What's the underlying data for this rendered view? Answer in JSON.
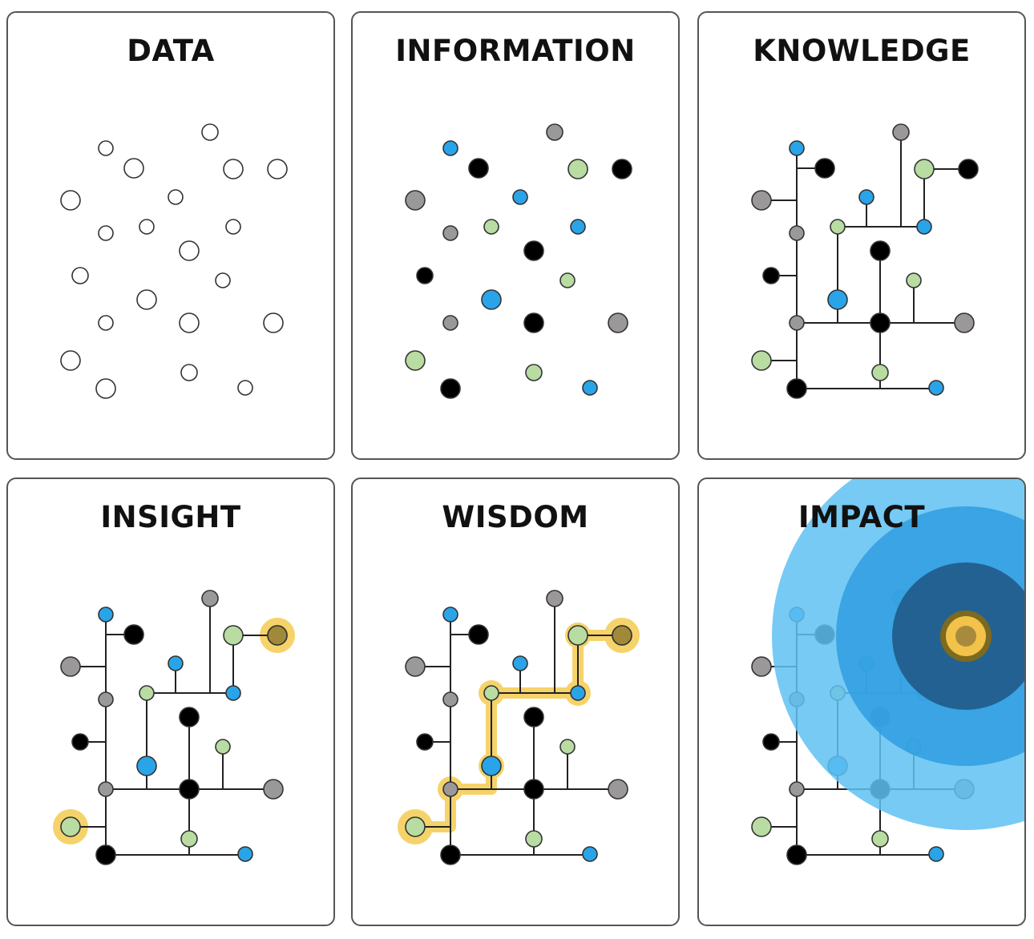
{
  "panels": [
    {
      "id": "data",
      "title": "DATA",
      "mode": "scatter-empty"
    },
    {
      "id": "information",
      "title": "INFORMATION",
      "mode": "scatter-colored"
    },
    {
      "id": "knowledge",
      "title": "KNOWLEDGE",
      "mode": "network"
    },
    {
      "id": "insight",
      "title": "INSIGHT",
      "mode": "network-highlight-endpoints"
    },
    {
      "id": "wisdom",
      "title": "WISDOM",
      "mode": "network-highlight-path"
    },
    {
      "id": "impact",
      "title": "IMPACT",
      "mode": "network-impact-ripple"
    }
  ],
  "colors": {
    "blue": "#2aa4e8",
    "black": "#000000",
    "gray": "#9a9898",
    "green": "#b8dca2",
    "empty": "#ffffff",
    "highlight": "#f5d36a",
    "highlight_node": "#a08a3a",
    "ripple_outer": "#5fc1f2",
    "ripple_mid": "#2f9de0",
    "ripple_inner": "#215a8a",
    "target_ring": "#7d6a1e",
    "target_fill": "#f2c24a",
    "target_core": "#a88a3c",
    "stroke": "#333333",
    "panel_border": "#555555"
  }
}
